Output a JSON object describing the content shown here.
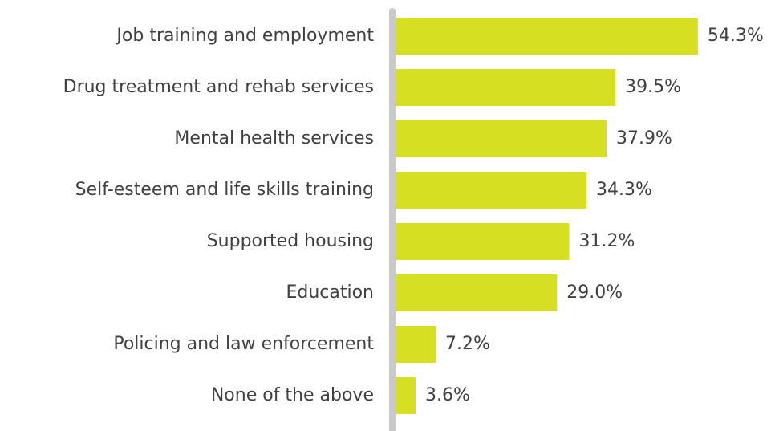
{
  "chart_data": {
    "type": "barh",
    "categories": [
      "Job training and employment",
      "Drug treatment and rehab services",
      "Mental health services",
      "Self-esteem and life skills training",
      "Supported housing",
      "Education",
      "Policing and law enforcement",
      "None of the above"
    ],
    "values": [
      54.3,
      39.5,
      37.9,
      34.3,
      31.2,
      29.0,
      7.2,
      3.6
    ],
    "value_labels": [
      "54.3%",
      "39.5%",
      "37.9%",
      "34.3%",
      "31.2%",
      "29.0%",
      "7.2%",
      "3.6%"
    ],
    "color": "#d7df23",
    "xlim": [
      0,
      60
    ]
  }
}
